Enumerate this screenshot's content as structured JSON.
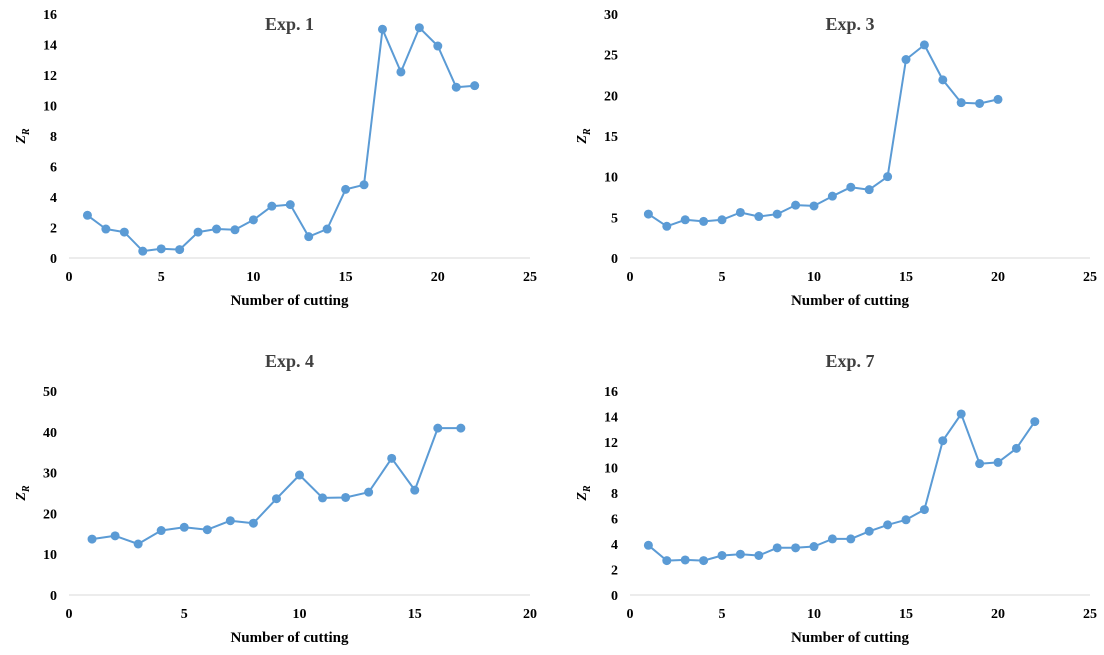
{
  "chart_data": [
    {
      "type": "line",
      "title": "Exp. 1",
      "xlabel": "Number of cutting",
      "ylabel": "Z",
      "ylabel_sub": "R",
      "xlim": [
        0,
        25
      ],
      "ylim": [
        0,
        16
      ],
      "xticks": [
        0,
        5,
        10,
        15,
        20,
        25
      ],
      "yticks": [
        0,
        2,
        4,
        6,
        8,
        10,
        12,
        14,
        16
      ],
      "grid": false,
      "legend": "none",
      "color": "#5b9bd5",
      "x": [
        1,
        2,
        3,
        4,
        5,
        6,
        7,
        8,
        9,
        10,
        11,
        12,
        13,
        14,
        15,
        16,
        17,
        18,
        19,
        20,
        21,
        22
      ],
      "values": [
        2.8,
        1.9,
        1.7,
        0.45,
        0.6,
        0.55,
        1.7,
        1.9,
        1.85,
        2.5,
        3.4,
        3.5,
        1.4,
        1.9,
        4.5,
        4.8,
        15.0,
        12.2,
        15.1,
        13.9,
        11.2,
        11.3
      ]
    },
    {
      "type": "line",
      "title": "Exp. 3",
      "xlabel": "Number of cutting",
      "ylabel": "Z",
      "ylabel_sub": "R",
      "xlim": [
        0,
        25
      ],
      "ylim": [
        0,
        30
      ],
      "xticks": [
        0,
        5,
        10,
        15,
        20,
        25
      ],
      "yticks": [
        0,
        5,
        10,
        15,
        20,
        25,
        30
      ],
      "grid": false,
      "legend": "none",
      "color": "#5b9bd5",
      "x": [
        1,
        2,
        3,
        4,
        5,
        6,
        7,
        8,
        9,
        10,
        11,
        12,
        13,
        14,
        15,
        16,
        17,
        18,
        19,
        20
      ],
      "values": [
        5.4,
        3.9,
        4.7,
        4.5,
        4.7,
        5.6,
        5.1,
        5.4,
        6.5,
        6.4,
        7.6,
        8.7,
        8.4,
        10.0,
        24.4,
        26.2,
        21.9,
        19.1,
        19.0,
        19.5
      ]
    },
    {
      "type": "line",
      "title": "Exp. 4",
      "xlabel": "Number of cutting",
      "ylabel": "Z",
      "ylabel_sub": "R",
      "xlim": [
        0,
        20
      ],
      "ylim": [
        0,
        50
      ],
      "xticks": [
        0,
        5,
        10,
        15,
        20
      ],
      "yticks": [
        0,
        10,
        20,
        30,
        40,
        50
      ],
      "grid": false,
      "legend": "none",
      "color": "#5b9bd5",
      "x": [
        1,
        2,
        3,
        4,
        5,
        6,
        7,
        8,
        9,
        10,
        11,
        12,
        13,
        14,
        15,
        16,
        17
      ],
      "values": [
        13.7,
        14.5,
        12.5,
        15.8,
        16.6,
        16.0,
        18.2,
        17.6,
        23.6,
        29.4,
        23.8,
        23.9,
        25.2,
        33.5,
        25.7,
        40.9,
        40.9
      ]
    },
    {
      "type": "line",
      "title": "Exp. 7",
      "xlabel": "Number of cutting",
      "ylabel": "Z",
      "ylabel_sub": "R",
      "xlim": [
        0,
        25
      ],
      "ylim": [
        0,
        16
      ],
      "xticks": [
        0,
        5,
        10,
        15,
        20,
        25
      ],
      "yticks": [
        0,
        2,
        4,
        6,
        8,
        10,
        12,
        14,
        16
      ],
      "grid": false,
      "legend": "none",
      "color": "#5b9bd5",
      "x": [
        1,
        2,
        3,
        4,
        5,
        6,
        7,
        8,
        9,
        10,
        11,
        12,
        13,
        14,
        15,
        16,
        17,
        18,
        19,
        20,
        21,
        22
      ],
      "values": [
        3.9,
        2.7,
        2.75,
        2.7,
        3.1,
        3.2,
        3.1,
        3.7,
        3.7,
        3.8,
        4.4,
        4.4,
        5.0,
        5.5,
        5.9,
        6.7,
        12.1,
        14.2,
        10.3,
        10.4,
        11.5,
        13.6
      ]
    }
  ]
}
